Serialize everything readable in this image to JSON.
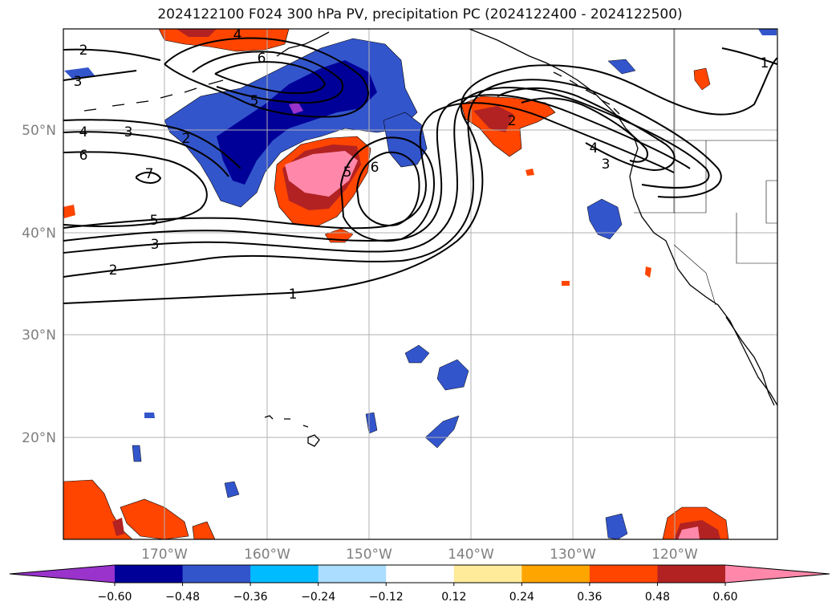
{
  "title": "2024122100 F024 300 hPa PV, precipitation PC (2024122400 - 2024122500)",
  "lat_labels": [
    "50°N",
    "40°N",
    "30°N",
    "20°N"
  ],
  "lon_labels": [
    "170°W",
    "160°W",
    "150°W",
    "140°W",
    "130°W",
    "120°W"
  ],
  "contour_labels": [
    "1",
    "2",
    "3",
    "4",
    "5",
    "6",
    "7"
  ],
  "colorbar": {
    "ticks": [
      "−0.60",
      "−0.48",
      "−0.36",
      "−0.24",
      "−0.12",
      "0.12",
      "0.24",
      "0.36",
      "0.48",
      "0.60"
    ],
    "colors": [
      "#9933cc",
      "#000099",
      "#3355cc",
      "#00bbff",
      "#aaddff",
      "#ffffff",
      "#ffeb99",
      "#ffa500",
      "#ff4500",
      "#b22222",
      "#ff88aa"
    ]
  }
}
